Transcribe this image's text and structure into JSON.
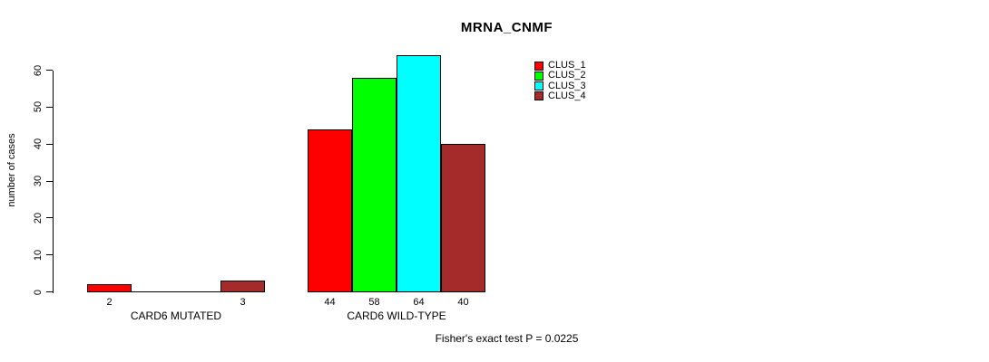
{
  "chart_data": {
    "type": "bar",
    "title": "MRNA_CNMF",
    "ylabel": "number of cases",
    "xlabel": "",
    "categories": [
      "CARD6 MUTATED",
      "CARD6 WILD-TYPE"
    ],
    "series": [
      {
        "name": "CLUS_1",
        "color": "#ff0000",
        "values": [
          2,
          44
        ]
      },
      {
        "name": "CLUS_2",
        "color": "#00ff00",
        "values": [
          0,
          58
        ]
      },
      {
        "name": "CLUS_3",
        "color": "#00ffff",
        "values": [
          0,
          64
        ]
      },
      {
        "name": "CLUS_4",
        "color": "#a52a2a",
        "values": [
          3,
          40
        ]
      }
    ],
    "bar_labels": [
      [
        "2",
        "",
        "",
        "3"
      ],
      [
        "44",
        "58",
        "64",
        "40"
      ]
    ],
    "yticks": [
      0,
      10,
      20,
      30,
      40,
      50,
      60
    ],
    "ylim": [
      0,
      60
    ],
    "grid": false,
    "legend_position": "top-right",
    "legend_entries": [
      "CLUS_1",
      "CLUS_2",
      "CLUS_3",
      "CLUS_4"
    ],
    "annotation": "Fisher's exact test P = 0.0225"
  }
}
